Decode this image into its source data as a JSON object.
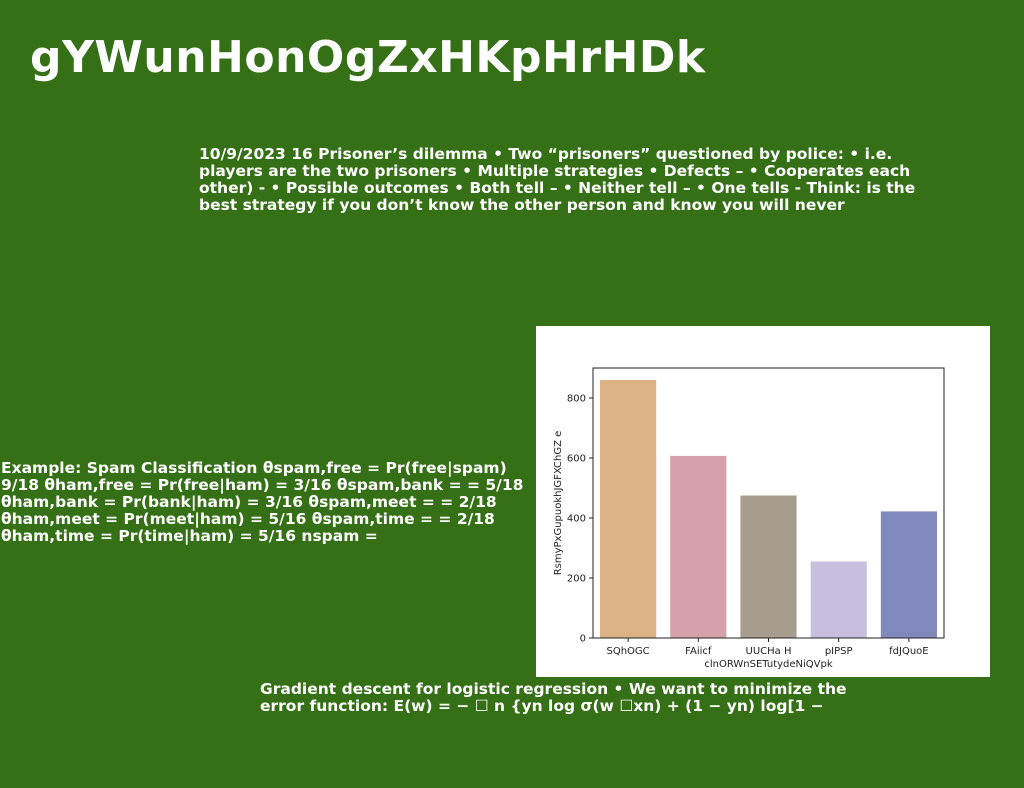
{
  "title": "gYWunHonOgZxHKpHrHDk",
  "paragraphs": {
    "p1": "10/9/2023 16 Prisoner’s dilemma • Two “prisoners” questioned by police: • i.e. players are the two prisoners • Multiple strategies • Defects – • Cooperates each other) - • Possible outcomes • Both tell – • Neither tell – • One tells - Think: is the best strategy if you don’t know the other person and know you will never",
    "p2": "Example: Spam Classification θspam,free = Pr(free|spam) 9/18 θham,free = Pr(free|ham) = 3/16 θspam,bank = = 5/18 θham,bank = Pr(bank|ham) = 3/16 θspam,meet = = 2/18 θham,meet = Pr(meet|ham) = 5/16 θspam,time = = 2/18 θham,time = Pr(time|ham) = 5/16 nspam =",
    "p3": "Gradient descent for logistic regression • We want to minimize the error function: E(w) = − ☐ n {yn log σ(w ☐xn) + (1 − yn) log[1 −"
  },
  "chart_data": {
    "type": "bar",
    "categories": [
      "SQhOGC",
      "FAiicf",
      "UUCHa H",
      "pIPSP",
      "fdJQuoE"
    ],
    "values": [
      860,
      607,
      475,
      255,
      422
    ],
    "colors": [
      "#dcb285",
      "#d5a0aa",
      "#a59d8d",
      "#c6c0de",
      "#8189bc"
    ],
    "xlabel": "clnORWnSETutydeNiQVpk",
    "ylabel": "RsmyPxGupuokhJGFXChGZ e",
    "ylim": [
      0,
      900
    ],
    "yticks": [
      0,
      200,
      400,
      600,
      800
    ]
  }
}
